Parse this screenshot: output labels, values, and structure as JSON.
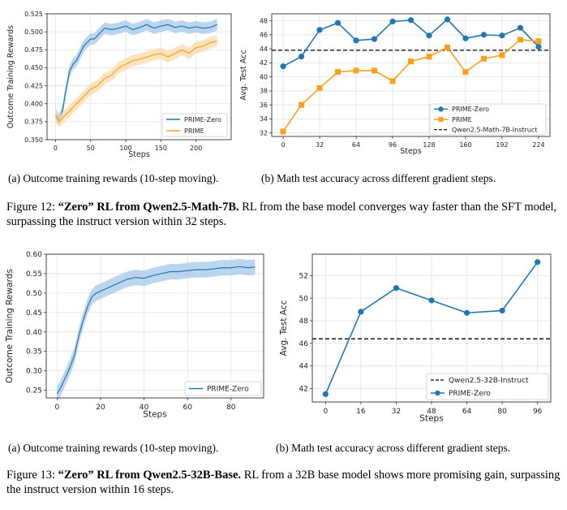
{
  "colors": {
    "blue": "#1f77b4",
    "orange": "#ff9f1c",
    "band_blue": "#9fc5e8",
    "band_orange": "#fbd9a6"
  },
  "figure12": {
    "subcaption_a": "(a) Outcome training rewards (10-step moving).",
    "subcaption_b": "(b) Math test accuracy across different gradient steps.",
    "caption_label": "Figure 12:",
    "caption_bold": "“Zero” RL from Qwen2.5-Math-7B.",
    "caption_text": " RL from the base model converges way faster than the SFT model, surpassing the instruct version within 32 steps."
  },
  "figure13": {
    "subcaption_a": "(a) Outcome training rewards (10-step moving).",
    "subcaption_b": "(b) Math test accuracy across different gradient steps.",
    "caption_label": "Figure 13:",
    "caption_bold": "“Zero” RL from Qwen2.5-32B-Base.",
    "caption_text": " RL from a 32B base model shows more promising gain, surpassing the instruct version within 16 steps."
  },
  "chart_data": [
    {
      "id": "c1",
      "type": "line",
      "xlabel": "Steps",
      "ylabel": "Outcome Training Rewards",
      "xlim": [
        -12,
        250
      ],
      "ylim": [
        0.35,
        0.525
      ],
      "xticks": [
        0,
        50,
        100,
        150,
        200
      ],
      "xticklabels": [
        "0",
        "50",
        "100",
        "150",
        "200"
      ],
      "yticks": [
        0.35,
        0.375,
        0.4,
        0.425,
        0.45,
        0.475,
        0.5,
        0.525
      ],
      "yticklabels": [
        "0.350",
        "0.375",
        "0.400",
        "0.425",
        "0.450",
        "0.475",
        "0.500",
        "0.525"
      ],
      "grid": true,
      "legend_position": "bottom-right",
      "series": [
        {
          "name": "PRIME-Zero",
          "color": "#1f77b4",
          "band": 0.008,
          "x": [
            0,
            5,
            10,
            15,
            20,
            25,
            30,
            35,
            40,
            45,
            50,
            55,
            60,
            65,
            70,
            80,
            90,
            100,
            110,
            120,
            130,
            140,
            150,
            160,
            170,
            180,
            190,
            200,
            210,
            220,
            230
          ],
          "y": [
            0.385,
            0.378,
            0.39,
            0.42,
            0.445,
            0.455,
            0.46,
            0.47,
            0.48,
            0.485,
            0.49,
            0.49,
            0.495,
            0.5,
            0.505,
            0.503,
            0.505,
            0.508,
            0.503,
            0.506,
            0.51,
            0.505,
            0.508,
            0.51,
            0.506,
            0.508,
            0.505,
            0.507,
            0.505,
            0.506,
            0.51
          ]
        },
        {
          "name": "PRIME",
          "color": "#ff9f1c",
          "band": 0.008,
          "x": [
            0,
            5,
            10,
            15,
            20,
            25,
            30,
            35,
            40,
            50,
            60,
            70,
            80,
            90,
            100,
            110,
            120,
            130,
            140,
            150,
            160,
            170,
            180,
            190,
            200,
            210,
            220,
            230
          ],
          "y": [
            0.385,
            0.375,
            0.38,
            0.385,
            0.39,
            0.395,
            0.4,
            0.405,
            0.41,
            0.42,
            0.425,
            0.435,
            0.44,
            0.45,
            0.455,
            0.46,
            0.462,
            0.465,
            0.468,
            0.47,
            0.465,
            0.47,
            0.475,
            0.47,
            0.478,
            0.48,
            0.485,
            0.487
          ]
        }
      ]
    },
    {
      "id": "c2",
      "type": "line",
      "xlabel": "Steps",
      "ylabel": "Avg. Test Acc",
      "xlim": [
        -10,
        234
      ],
      "ylim": [
        31.5,
        49
      ],
      "xticks": [
        0,
        32,
        64,
        96,
        128,
        160,
        192,
        224
      ],
      "xticklabels": [
        "0",
        "32",
        "64",
        "96",
        "128",
        "160",
        "192",
        "224"
      ],
      "yticks": [
        32,
        34,
        36,
        38,
        40,
        42,
        44,
        46,
        48
      ],
      "yticklabels": [
        "32",
        "34",
        "36",
        "38",
        "40",
        "42",
        "44",
        "46",
        "48"
      ],
      "grid": true,
      "legend_position": "bottom-right",
      "series": [
        {
          "name": "PRIME-Zero",
          "color": "#1f77b4",
          "marker": "circle",
          "x": [
            0,
            16,
            32,
            48,
            64,
            80,
            96,
            112,
            128,
            144,
            160,
            176,
            192,
            208,
            224
          ],
          "y": [
            41.5,
            42.9,
            46.7,
            47.7,
            45.2,
            45.4,
            47.9,
            48.1,
            45.9,
            48.2,
            45.5,
            46.0,
            45.9,
            47.0,
            44.3
          ]
        },
        {
          "name": "PRIME",
          "color": "#ff9f1c",
          "marker": "square",
          "x": [
            0,
            16,
            32,
            48,
            64,
            80,
            96,
            112,
            128,
            144,
            160,
            176,
            192,
            208,
            224
          ],
          "y": [
            32.2,
            36.0,
            38.4,
            40.7,
            40.9,
            40.9,
            39.4,
            42.2,
            42.9,
            44.2,
            40.7,
            42.6,
            43.1,
            45.3,
            45.1
          ]
        }
      ],
      "reference_line": {
        "name": "Qwen2.5-Math-7B-Instruct",
        "y": 43.8,
        "color": "#000000"
      }
    },
    {
      "id": "c3",
      "type": "line",
      "xlabel": "Steps",
      "ylabel": "Outcome Training Rewards",
      "xlim": [
        -5,
        95
      ],
      "ylim": [
        0.23,
        0.6
      ],
      "xticks": [
        0,
        20,
        40,
        60,
        80
      ],
      "xticklabels": [
        "0",
        "20",
        "40",
        "60",
        "80"
      ],
      "yticks": [
        0.25,
        0.3,
        0.35,
        0.4,
        0.45,
        0.5,
        0.55,
        0.6
      ],
      "yticklabels": [
        "0.25",
        "0.30",
        "0.35",
        "0.40",
        "0.45",
        "0.50",
        "0.55",
        "0.60"
      ],
      "grid": true,
      "legend_position": "bottom-right",
      "series": [
        {
          "name": "PRIME-Zero",
          "color": "#1f77b4",
          "band": 0.02,
          "x": [
            0,
            2,
            4,
            6,
            8,
            10,
            12,
            14,
            16,
            18,
            20,
            24,
            28,
            32,
            36,
            40,
            44,
            48,
            52,
            56,
            60,
            64,
            68,
            72,
            76,
            80,
            84,
            88,
            91
          ],
          "y": [
            0.24,
            0.26,
            0.285,
            0.31,
            0.34,
            0.39,
            0.43,
            0.465,
            0.49,
            0.5,
            0.505,
            0.515,
            0.525,
            0.535,
            0.54,
            0.538,
            0.545,
            0.55,
            0.555,
            0.555,
            0.558,
            0.56,
            0.56,
            0.562,
            0.565,
            0.565,
            0.568,
            0.565,
            0.567
          ]
        }
      ]
    },
    {
      "id": "c4",
      "type": "line",
      "xlabel": "Steps",
      "ylabel": "Avg. Test Acc",
      "xlim": [
        -6,
        102
      ],
      "ylim": [
        40.8,
        53.9
      ],
      "xticks": [
        0,
        16,
        32,
        48,
        64,
        80,
        96
      ],
      "xticklabels": [
        "0",
        "16",
        "32",
        "48",
        "64",
        "80",
        "96"
      ],
      "yticks": [
        42,
        44,
        46,
        48,
        50,
        52
      ],
      "yticklabels": [
        "42",
        "44",
        "46",
        "48",
        "50",
        "52"
      ],
      "grid": true,
      "legend_position": "bottom-right",
      "series": [
        {
          "name": "PRIME-Zero",
          "color": "#1f77b4",
          "marker": "circle",
          "x": [
            0,
            16,
            32,
            48,
            64,
            80,
            96
          ],
          "y": [
            41.5,
            48.8,
            50.9,
            49.8,
            48.7,
            48.9,
            53.2
          ]
        }
      ],
      "reference_line": {
        "name": "Qwen2.5-32B-Instruct",
        "y": 46.4,
        "color": "#000000"
      }
    }
  ]
}
